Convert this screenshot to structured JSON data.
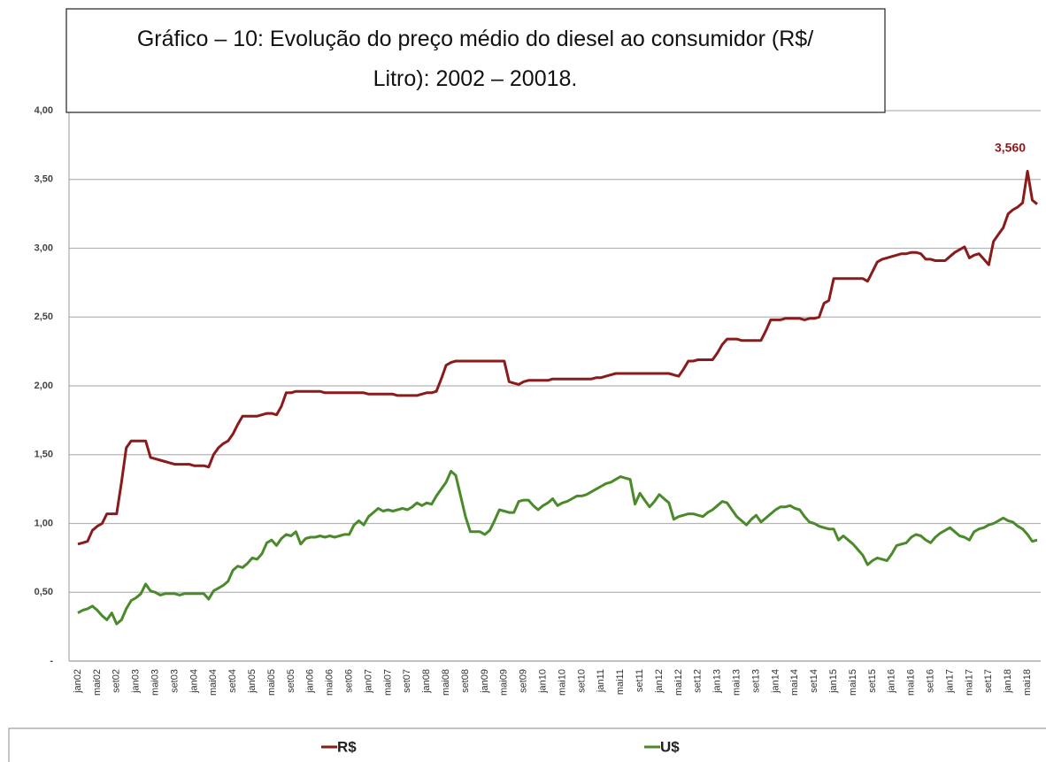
{
  "chart_data": {
    "type": "line",
    "title": [
      "Gráfico – 10: Evolução do preço médio do diesel ao consumidor (R$/",
      "Litro): 2002 – 20018."
    ],
    "annotation": "3,560",
    "categories": [
      "jan02",
      null,
      null,
      null,
      "mai02",
      null,
      null,
      null,
      "set02",
      null,
      null,
      null,
      "jan03",
      null,
      null,
      null,
      "mai03",
      null,
      null,
      null,
      "set03",
      null,
      null,
      null,
      "jan04",
      null,
      null,
      null,
      "mai04",
      null,
      null,
      null,
      "set04",
      null,
      null,
      null,
      "jan05",
      null,
      null,
      null,
      "mai05",
      null,
      null,
      null,
      "set05",
      null,
      null,
      null,
      "jan06",
      null,
      null,
      null,
      "mai06",
      null,
      null,
      null,
      "set06",
      null,
      null,
      null,
      "jan07",
      null,
      null,
      null,
      "mai07",
      null,
      null,
      null,
      "set07",
      null,
      null,
      null,
      "jan08",
      null,
      null,
      null,
      "mai08",
      null,
      null,
      null,
      "set08",
      null,
      null,
      null,
      "jan09",
      null,
      null,
      null,
      "mai09",
      null,
      null,
      null,
      "set09",
      null,
      null,
      null,
      "jan10",
      null,
      null,
      null,
      "mai10",
      null,
      null,
      null,
      "set10",
      null,
      null,
      null,
      "jan11",
      null,
      null,
      null,
      "mai11",
      null,
      null,
      null,
      "set11",
      null,
      null,
      null,
      "jan12",
      null,
      null,
      null,
      "mai12",
      null,
      null,
      null,
      "set12",
      null,
      null,
      null,
      "jan13",
      null,
      null,
      null,
      "mai13",
      null,
      null,
      null,
      "set13",
      null,
      null,
      null,
      "jan14",
      null,
      null,
      null,
      "mai14",
      null,
      null,
      null,
      "set14",
      null,
      null,
      null,
      "jan15",
      null,
      null,
      null,
      "mai15",
      null,
      null,
      null,
      "set15",
      null,
      null,
      null,
      "jan16",
      null,
      null,
      null,
      "mai16",
      null,
      null,
      null,
      "set16",
      null,
      null,
      null,
      "jan17",
      null,
      null,
      null,
      "mai17",
      null,
      null,
      null,
      "set17",
      null,
      null,
      null,
      "jan18",
      null,
      null,
      null,
      "mai18",
      null,
      null
    ],
    "series": [
      {
        "name": "R$",
        "color": "#8b1a1a",
        "values": [
          0.85,
          0.86,
          0.87,
          0.95,
          0.98,
          1.0,
          1.07,
          1.07,
          1.07,
          1.3,
          1.55,
          1.6,
          1.6,
          1.6,
          1.6,
          1.48,
          1.47,
          1.46,
          1.45,
          1.44,
          1.43,
          1.43,
          1.43,
          1.43,
          1.42,
          1.42,
          1.42,
          1.41,
          1.5,
          1.55,
          1.58,
          1.6,
          1.65,
          1.72,
          1.78,
          1.78,
          1.78,
          1.78,
          1.79,
          1.8,
          1.8,
          1.79,
          1.85,
          1.95,
          1.95,
          1.96,
          1.96,
          1.96,
          1.96,
          1.96,
          1.96,
          1.95,
          1.95,
          1.95,
          1.95,
          1.95,
          1.95,
          1.95,
          1.95,
          1.95,
          1.94,
          1.94,
          1.94,
          1.94,
          1.94,
          1.94,
          1.93,
          1.93,
          1.93,
          1.93,
          1.93,
          1.94,
          1.95,
          1.95,
          1.96,
          2.05,
          2.15,
          2.17,
          2.18,
          2.18,
          2.18,
          2.18,
          2.18,
          2.18,
          2.18,
          2.18,
          2.18,
          2.18,
          2.18,
          2.03,
          2.02,
          2.01,
          2.03,
          2.04,
          2.04,
          2.04,
          2.04,
          2.04,
          2.05,
          2.05,
          2.05,
          2.05,
          2.05,
          2.05,
          2.05,
          2.05,
          2.05,
          2.06,
          2.06,
          2.07,
          2.08,
          2.09,
          2.09,
          2.09,
          2.09,
          2.09,
          2.09,
          2.09,
          2.09,
          2.09,
          2.09,
          2.09,
          2.09,
          2.08,
          2.07,
          2.12,
          2.18,
          2.18,
          2.19,
          2.19,
          2.19,
          2.19,
          2.24,
          2.3,
          2.34,
          2.34,
          2.34,
          2.33,
          2.33,
          2.33,
          2.33,
          2.33,
          2.4,
          2.48,
          2.48,
          2.48,
          2.49,
          2.49,
          2.49,
          2.49,
          2.48,
          2.49,
          2.49,
          2.5,
          2.6,
          2.62,
          2.78,
          2.78,
          2.78,
          2.78,
          2.78,
          2.78,
          2.78,
          2.76,
          2.83,
          2.9,
          2.92,
          2.93,
          2.94,
          2.95,
          2.96,
          2.96,
          2.97,
          2.97,
          2.96,
          2.92,
          2.92,
          2.91,
          2.91,
          2.91,
          2.94,
          2.97,
          2.99,
          3.01,
          2.93,
          2.95,
          2.96,
          2.92,
          2.88,
          3.05,
          3.1,
          3.15,
          3.25,
          3.28,
          3.3,
          3.33,
          3.56,
          3.35,
          3.32
        ]
      },
      {
        "name": "U$",
        "color": "#4a8a2a",
        "values": [
          0.35,
          0.37,
          0.38,
          0.4,
          0.37,
          0.33,
          0.3,
          0.35,
          0.27,
          0.3,
          0.38,
          0.44,
          0.46,
          0.49,
          0.56,
          0.51,
          0.5,
          0.48,
          0.49,
          0.49,
          0.49,
          0.48,
          0.49,
          0.49,
          0.49,
          0.49,
          0.49,
          0.45,
          0.51,
          0.53,
          0.55,
          0.58,
          0.66,
          0.69,
          0.68,
          0.71,
          0.75,
          0.74,
          0.78,
          0.86,
          0.88,
          0.84,
          0.89,
          0.92,
          0.91,
          0.94,
          0.85,
          0.89,
          0.9,
          0.9,
          0.91,
          0.9,
          0.91,
          0.9,
          0.91,
          0.92,
          0.92,
          0.99,
          1.02,
          0.99,
          1.05,
          1.08,
          1.11,
          1.09,
          1.1,
          1.09,
          1.1,
          1.11,
          1.1,
          1.12,
          1.15,
          1.13,
          1.15,
          1.14,
          1.2,
          1.25,
          1.3,
          1.38,
          1.35,
          1.2,
          1.05,
          0.94,
          0.94,
          0.94,
          0.92,
          0.95,
          1.02,
          1.1,
          1.09,
          1.08,
          1.08,
          1.16,
          1.17,
          1.17,
          1.13,
          1.1,
          1.13,
          1.15,
          1.18,
          1.13,
          1.15,
          1.16,
          1.18,
          1.2,
          1.2,
          1.21,
          1.23,
          1.25,
          1.27,
          1.29,
          1.3,
          1.32,
          1.34,
          1.33,
          1.32,
          1.14,
          1.22,
          1.17,
          1.12,
          1.16,
          1.21,
          1.18,
          1.15,
          1.03,
          1.05,
          1.06,
          1.07,
          1.07,
          1.06,
          1.05,
          1.08,
          1.1,
          1.13,
          1.16,
          1.15,
          1.1,
          1.05,
          1.02,
          0.99,
          1.03,
          1.06,
          1.01,
          1.04,
          1.07,
          1.1,
          1.12,
          1.12,
          1.13,
          1.11,
          1.1,
          1.05,
          1.01,
          1.0,
          0.98,
          0.97,
          0.96,
          0.96,
          0.88,
          0.91,
          0.88,
          0.85,
          0.81,
          0.77,
          0.7,
          0.73,
          0.75,
          0.74,
          0.73,
          0.78,
          0.84,
          0.85,
          0.86,
          0.9,
          0.92,
          0.91,
          0.88,
          0.86,
          0.9,
          0.93,
          0.95,
          0.97,
          0.94,
          0.91,
          0.9,
          0.88,
          0.94,
          0.96,
          0.97,
          0.99,
          1.0,
          1.02,
          1.04,
          1.02,
          1.01,
          0.98,
          0.96,
          0.92,
          0.87,
          0.88
        ]
      }
    ],
    "ylim": [
      0,
      4
    ],
    "yticks": [
      {
        "value": 0,
        "label": "-"
      },
      {
        "value": 0.5,
        "label": "0,50"
      },
      {
        "value": 1,
        "label": "1,00"
      },
      {
        "value": 1.5,
        "label": "1,50"
      },
      {
        "value": 2,
        "label": "2,00"
      },
      {
        "value": 2.5,
        "label": "2,50"
      },
      {
        "value": 3,
        "label": "3,00"
      },
      {
        "value": 3.5,
        "label": "3,50"
      },
      {
        "value": 4,
        "label": "4,00"
      }
    ],
    "grid": true,
    "legend": "bottom"
  }
}
